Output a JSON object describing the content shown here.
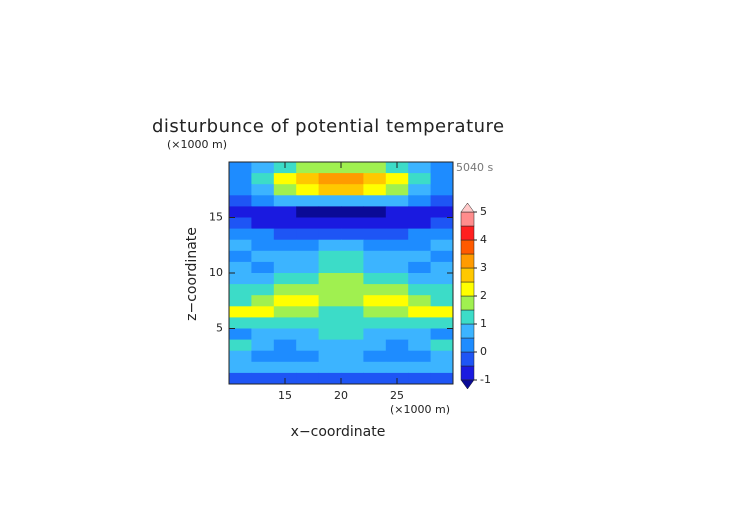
{
  "chart_data": {
    "type": "contour",
    "title": "disturbunce of potential temperature",
    "annotation": "5040 s",
    "x_label": "x−coordinate",
    "y_label": "z−coordinate",
    "x_unit": "(×1000 m)",
    "y_unit": "(×1000 m)",
    "xlim": [
      10,
      30
    ],
    "ylim": [
      0,
      20
    ],
    "xticks": [
      15,
      20,
      25
    ],
    "yticks": [
      5,
      10,
      15
    ],
    "x": [
      11,
      13,
      15,
      17,
      19,
      21,
      23,
      25,
      27,
      29
    ],
    "y": [
      19.5,
      18.5,
      17.5,
      16.5,
      15.5,
      14.5,
      13.5,
      12.5,
      11.5,
      10.5,
      9.5,
      8.5,
      7.5,
      6.5,
      5.5,
      4.5,
      3.5,
      2.5,
      1.5,
      0.5
    ],
    "z": [
      [
        0.2,
        0.6,
        1.2,
        1.6,
        1.8,
        1.8,
        1.6,
        1.2,
        0.6,
        0.2
      ],
      [
        0.3,
        1.2,
        2.2,
        2.8,
        3.3,
        3.3,
        2.8,
        2.2,
        1.2,
        0.3
      ],
      [
        0.2,
        0.8,
        1.6,
        2.2,
        2.6,
        2.6,
        2.2,
        1.6,
        0.8,
        0.2
      ],
      [
        -0.2,
        0.2,
        0.6,
        0.8,
        0.9,
        0.9,
        0.8,
        0.6,
        0.2,
        -0.2
      ],
      [
        -0.6,
        -0.8,
        -1.0,
        -1.1,
        -1.1,
        -1.1,
        -1.1,
        -1.0,
        -0.8,
        -0.6
      ],
      [
        -0.3,
        -0.6,
        -0.9,
        -1.0,
        -0.9,
        -0.9,
        -1.0,
        -0.9,
        -0.6,
        -0.3
      ],
      [
        0.2,
        0.1,
        -0.2,
        -0.4,
        -0.3,
        -0.3,
        -0.4,
        -0.2,
        0.1,
        0.2
      ],
      [
        0.6,
        0.3,
        0.2,
        0.3,
        0.6,
        0.6,
        0.3,
        0.2,
        0.3,
        0.6
      ],
      [
        0.3,
        0.5,
        0.7,
        0.8,
        1.0,
        1.0,
        0.8,
        0.7,
        0.5,
        0.3
      ],
      [
        0.8,
        0.4,
        0.6,
        0.9,
        1.3,
        1.3,
        0.9,
        0.6,
        0.4,
        0.8
      ],
      [
        0.7,
        0.9,
        1.0,
        1.2,
        1.6,
        1.6,
        1.2,
        1.0,
        0.9,
        0.7
      ],
      [
        1.0,
        1.2,
        1.5,
        1.8,
        1.6,
        1.6,
        1.8,
        1.5,
        1.2,
        1.0
      ],
      [
        1.4,
        1.6,
        2.0,
        2.2,
        1.8,
        1.8,
        2.2,
        2.0,
        1.6,
        1.4
      ],
      [
        2.3,
        2.1,
        1.8,
        1.5,
        1.3,
        1.3,
        1.5,
        1.8,
        2.1,
        2.3
      ],
      [
        1.2,
        1.3,
        1.2,
        1.0,
        1.4,
        1.4,
        1.0,
        1.2,
        1.3,
        1.2
      ],
      [
        0.4,
        0.6,
        0.9,
        0.8,
        1.2,
        1.2,
        0.8,
        0.9,
        0.6,
        0.4
      ],
      [
        1.3,
        0.6,
        0.3,
        0.5,
        0.9,
        0.9,
        0.5,
        0.3,
        0.6,
        1.3
      ],
      [
        0.5,
        0.4,
        0.2,
        0.3,
        0.8,
        0.8,
        0.3,
        0.2,
        0.4,
        0.5
      ],
      [
        0.7,
        0.8,
        0.5,
        0.6,
        0.9,
        0.9,
        0.6,
        0.5,
        0.8,
        0.7
      ],
      [
        -0.4,
        -0.3,
        -0.5,
        -0.3,
        -0.2,
        -0.2,
        -0.3,
        -0.5,
        -0.3,
        -0.4
      ]
    ],
    "levels": [
      -1,
      -0.5,
      0,
      0.5,
      1,
      1.5,
      2,
      2.5,
      3,
      3.5,
      4,
      4.5,
      5
    ],
    "colors": [
      "#1a1ae0",
      "#1e55f5",
      "#1e8cff",
      "#3cb4ff",
      "#3cdcc8",
      "#a0f050",
      "#ffff00",
      "#ffc800",
      "#ff9b00",
      "#ff5a00",
      "#ff2020",
      "#ff8c8c"
    ],
    "under_color": "#0a0a96",
    "over_color": "#ffc8c8",
    "colorbar_ticks": [
      -1,
      0,
      1,
      2,
      3,
      4,
      5
    ]
  }
}
